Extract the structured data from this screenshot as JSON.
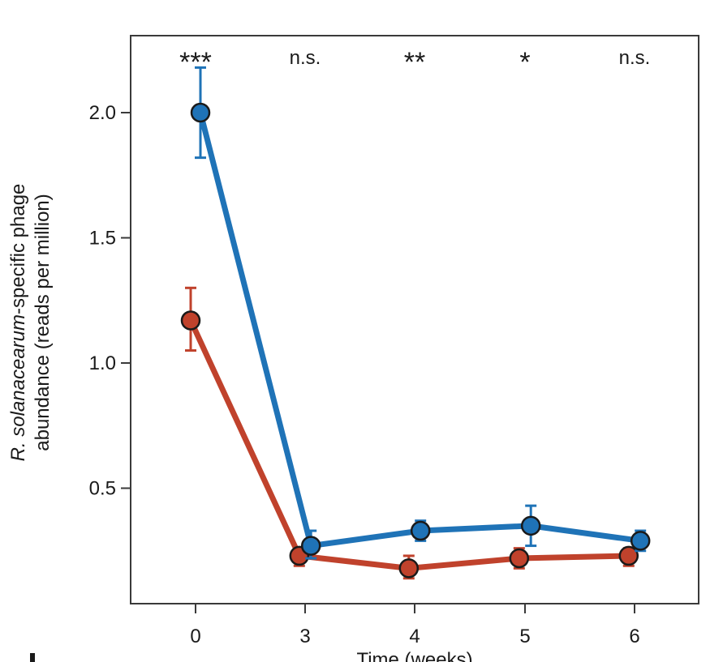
{
  "chart_data": {
    "type": "line",
    "title": "",
    "xlabel": "Time (weeks)",
    "ylabel_line1_italic": "R. solanacearum",
    "ylabel_line1_rest": "-specific phage",
    "ylabel_line2": "abundance (reads per million)",
    "categories": [
      "0",
      "3",
      "4",
      "5",
      "6"
    ],
    "ylim": [
      0.0,
      2.3
    ],
    "yticks": [
      0.5,
      1.0,
      1.5,
      2.0
    ],
    "ytick_labels": [
      "0.5",
      "1.0",
      "1.5",
      "2.0"
    ],
    "grid": false,
    "significance": [
      "***",
      "n.s.",
      "**",
      "*",
      "n.s."
    ],
    "series": [
      {
        "color": "#1f73b7",
        "values": [
          2.0,
          0.27,
          0.33,
          0.35,
          0.29
        ],
        "err_low": [
          1.82,
          0.22,
          0.29,
          0.27,
          0.25
        ],
        "err_high": [
          2.18,
          0.33,
          0.37,
          0.43,
          0.33
        ]
      },
      {
        "color": "#c0422c",
        "values": [
          1.17,
          0.23,
          0.18,
          0.22,
          0.23
        ],
        "err_low": [
          1.05,
          0.19,
          0.14,
          0.18,
          0.19
        ],
        "err_high": [
          1.3,
          0.26,
          0.23,
          0.26,
          0.26
        ]
      }
    ]
  }
}
